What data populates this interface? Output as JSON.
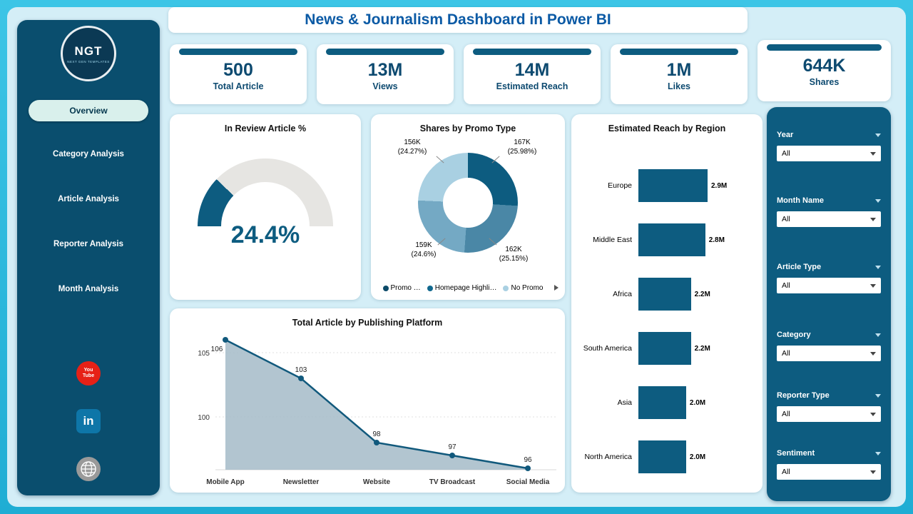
{
  "title": "News & Journalism Dashboard in Power BI",
  "logo": {
    "text": "NGT",
    "subtext": "NEXT GEN TEMPLATES"
  },
  "icons": {
    "youtube": "You\nTube",
    "linkedin": "in"
  },
  "sidebar": {
    "items": [
      {
        "label": "Overview",
        "active": true
      },
      {
        "label": "Category Analysis",
        "active": false
      },
      {
        "label": "Article Analysis",
        "active": false
      },
      {
        "label": "Reporter Analysis",
        "active": false
      },
      {
        "label": "Month Analysis",
        "active": false
      }
    ]
  },
  "kpis": [
    {
      "value": "500",
      "label": "Total Article"
    },
    {
      "value": "13M",
      "label": "Views"
    },
    {
      "value": "14M",
      "label": "Estimated Reach"
    },
    {
      "value": "1M",
      "label": "Likes"
    },
    {
      "value": "644K",
      "label": "Shares"
    }
  ],
  "filters": [
    {
      "label": "Year",
      "value": "All"
    },
    {
      "label": "Month Name",
      "value": "All"
    },
    {
      "label": "Article Type",
      "value": "All"
    },
    {
      "label": "Category",
      "value": "All"
    },
    {
      "label": "Reporter Type",
      "value": "All"
    },
    {
      "label": "Sentiment",
      "value": "All"
    }
  ],
  "colors": {
    "primary_dark": "#0d5c80",
    "sidebar": "#0a4e6e",
    "accent_cyan": "#2fb9dc",
    "title_blue": "#0b5aa5"
  },
  "chart_data": [
    {
      "type": "gauge",
      "title": "In Review Article %",
      "value": 24.4,
      "max": 100,
      "display": "24.4%",
      "color": "#0d5c80",
      "track_color": "#e6e5e2"
    },
    {
      "type": "pie",
      "title": "Shares by Promo Type",
      "segments": [
        {
          "label": "167K",
          "pct": 25.98,
          "color": "#0d5c80"
        },
        {
          "label": "162K",
          "pct": 25.15,
          "color": "#4a87a6"
        },
        {
          "label": "159K",
          "pct": 24.6,
          "color": "#74a9c4"
        },
        {
          "label": "156K",
          "pct": 24.27,
          "color": "#a9d0e2"
        }
      ],
      "callouts": [
        {
          "text": "156K\n(24.27%)"
        },
        {
          "text": "167K\n(25.98%)"
        },
        {
          "text": "159K\n(24.6%)"
        },
        {
          "text": "162K\n(25.15%)"
        }
      ],
      "legend": [
        {
          "label": "Promo …",
          "color": "#0c4a68"
        },
        {
          "label": "Homepage Highli…",
          "color": "#11688e"
        },
        {
          "label": "No Promo",
          "color": "#a9d0e2"
        }
      ]
    },
    {
      "type": "bar",
      "title": "Estimated Reach by Region",
      "orientation": "horizontal",
      "categories": [
        "Europe",
        "Middle East",
        "Africa",
        "South America",
        "Asia",
        "North America"
      ],
      "values": [
        2.9,
        2.8,
        2.2,
        2.2,
        2.0,
        2.0
      ],
      "value_labels": [
        "2.9M",
        "2.8M",
        "2.2M",
        "2.2M",
        "2.0M",
        "2.0M"
      ],
      "bar_color": "#0d5c80",
      "xlim": [
        0,
        2.9
      ]
    },
    {
      "type": "area",
      "title": "Total Article by Publishing Platform",
      "categories": [
        "Mobile App",
        "Newsletter",
        "Website",
        "TV Broadcast",
        "Social Media"
      ],
      "values": [
        106,
        103,
        98,
        97,
        96
      ],
      "value_labels": [
        "106",
        "103",
        "98",
        "97",
        "96"
      ],
      "yticks": [
        105,
        100
      ],
      "line_color": "#11597c",
      "fill_color": "#a4bbc8"
    }
  ]
}
